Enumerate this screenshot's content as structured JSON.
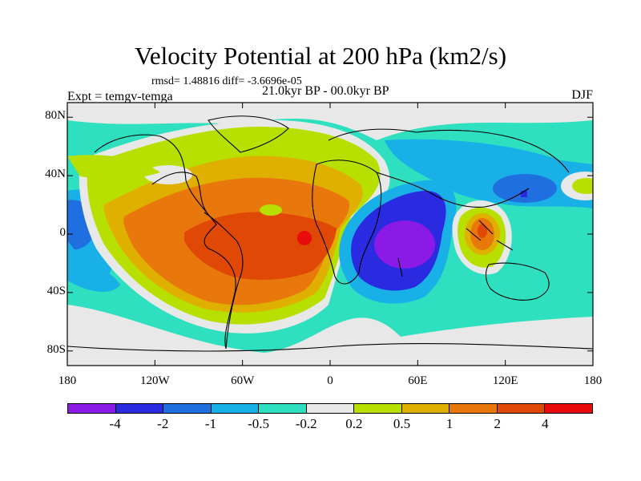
{
  "title": "Velocity Potential at 200 hPa (km2/s)",
  "subtitle_left_top": "rmsd= 1.48816 diff= -3.6696e-05",
  "subtitle_center": "21.0kyr BP - 00.0kyr BP",
  "subtitle_left": "Expt = temgv-temga",
  "subtitle_right": "DJF",
  "map": {
    "projection": "cylindrical equidistant",
    "lon_range": [
      -180,
      180
    ],
    "lat_range": [
      -90,
      90
    ],
    "lat_labels": [
      {
        "lat": 80,
        "text": "80N"
      },
      {
        "lat": 40,
        "text": "40N"
      },
      {
        "lat": 0,
        "text": "0"
      },
      {
        "lat": -40,
        "text": "40S"
      },
      {
        "lat": -80,
        "text": "80S"
      }
    ],
    "lon_labels": [
      {
        "lon": -180,
        "text": "180"
      },
      {
        "lon": -120,
        "text": "120W"
      },
      {
        "lon": -60,
        "text": "60W"
      },
      {
        "lon": 0,
        "text": "0"
      },
      {
        "lon": 60,
        "text": "60E"
      },
      {
        "lon": 120,
        "text": "120E"
      },
      {
        "lon": 180,
        "text": "180"
      }
    ]
  },
  "colorbar": {
    "colors": [
      "#8b1ae6",
      "#2a2ae0",
      "#1f6fe0",
      "#19b0e8",
      "#2ee0c0",
      "#e8e8e8",
      "#b7e000",
      "#e0b000",
      "#e8780c",
      "#e04806",
      "#e80c0c"
    ],
    "labels": [
      "-4",
      "-2",
      "-1",
      "-0.5",
      "-0.2",
      "0.2",
      "0.5",
      "1",
      "2",
      "4"
    ]
  },
  "chart_data": {
    "type": "filled-contour-map",
    "variable": "Velocity Potential at 200 hPa",
    "units": "km2/s",
    "levels": [
      -4,
      -2,
      -1,
      -0.5,
      -0.2,
      0.2,
      0.5,
      1,
      2,
      4
    ],
    "features": [
      {
        "region": "tropical Atlantic / South America",
        "lon": -30,
        "lat": 0,
        "approx_value": 2.5
      },
      {
        "region": "near West Africa",
        "lon": -12,
        "lat": 0,
        "approx_value": 4.2
      },
      {
        "region": "western Indian Ocean",
        "lon": 52,
        "lat": -5,
        "approx_value": -4.2
      },
      {
        "region": "Maritime Continent",
        "lon": 102,
        "lat": 0,
        "approx_value": 2.2
      },
      {
        "region": "Southern Ocean",
        "lon": 120,
        "lat": -55,
        "approx_value": -0.3
      },
      {
        "region": "North Pacific",
        "lon": 130,
        "lat": 40,
        "approx_value": -0.8
      },
      {
        "region": "Arctic",
        "lon": 0,
        "lat": 85,
        "approx_value": 0.0
      }
    ]
  }
}
